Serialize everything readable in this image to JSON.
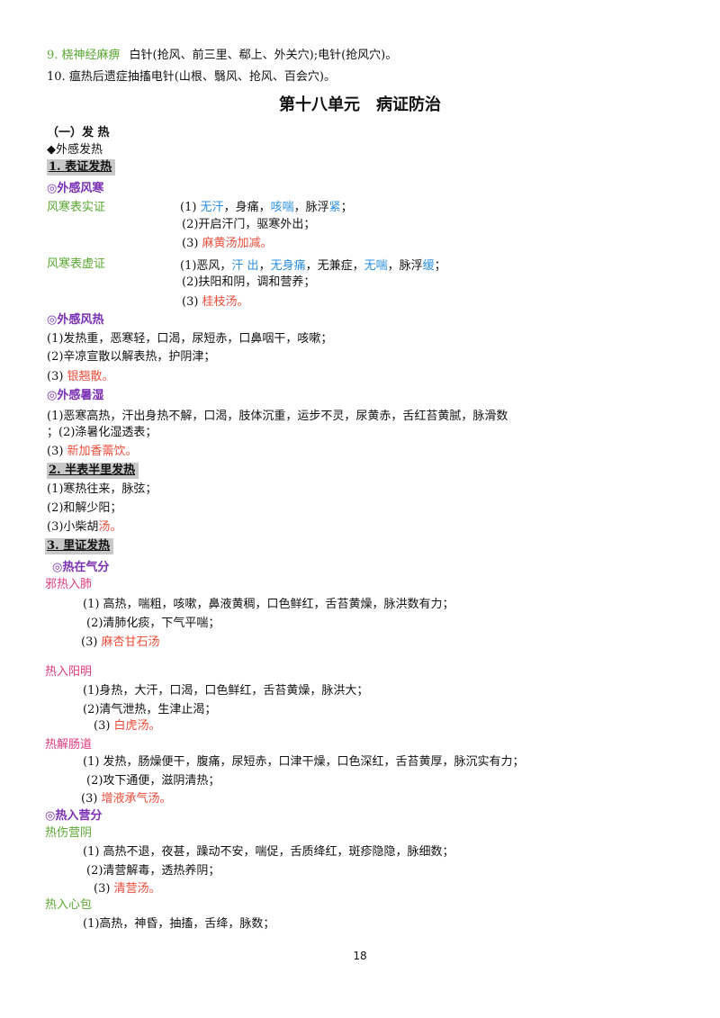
{
  "lines": [
    [
      "9. 桡神经麻痹",
      "白针(抢风、前三里、郗上、外关穴);电针(抢风穴)。"
    ],
    [
      "10. 瘟热后遗症抽搐电针(山根、翳风、抢风、百会穴)。"
    ],
    [
      "第十八单元　病证防治"
    ],
    [
      "（一）发 热"
    ],
    [
      "◆外感发热"
    ],
    [
      "1. 表证发热"
    ],
    [
      "◎外感风寒"
    ],
    [
      "风寒表实证"
    ],
    [
      "(1) ",
      "无汗",
      "，身痛，",
      "咳喘",
      "，脉浮",
      "紧",
      "；"
    ],
    [
      "(2)开启汗门，驱寒外出；"
    ],
    [
      "(3) ",
      "麻黄汤加减。"
    ],
    [
      "风寒表虚证"
    ],
    [
      "(1)恶风，",
      "汗 出",
      "，",
      "无身痛",
      "，无兼症，",
      "无喘",
      "，脉浮",
      "缓",
      "；"
    ],
    [
      "(2)扶阳和阴，调和营养；"
    ],
    [
      "(3) ",
      "桂枝汤。"
    ],
    [
      "◎外感风热"
    ],
    [
      "(1)发热重，恶寒轻，口渴，尿短赤，口鼻咽干，咳嗽；"
    ],
    [
      "(2)辛凉宣散以解表热，护阴津；"
    ],
    [
      "(3) ",
      "银翘散。"
    ],
    [
      "◎外感暑湿"
    ],
    [
      "(1)恶寒高热，汗出身热不解，口渴，肢体沉重，运步不灵，尿黄赤，舌红苔黄腻，脉滑数"
    ],
    [
      "；(2)涤暑化湿透表；"
    ],
    [
      "(3) ",
      "新加香薷饮。"
    ],
    [
      "2. 半表半里发热"
    ],
    [
      "(1)寒热往来，脉弦；"
    ],
    [
      "(2)和解少阳；"
    ],
    [
      "(3)小柴胡",
      "汤。"
    ],
    [
      "3. 里证发热"
    ],
    [
      "◎热在气分"
    ],
    [
      "邪热入肺"
    ],
    [
      "(1) 高热，喘粗，咳嗽，鼻液黄稠，口色鲜红，舌苔黄燥，脉洪数有力；"
    ],
    [
      "(2)清肺化痰，下气平喘；"
    ],
    [
      "(3) ",
      "麻杏甘石汤"
    ],
    [
      "热入阳明"
    ],
    [
      "(1)身热，大汗，口渴，口色鲜红，舌苔黄燥，脉洪大；"
    ],
    [
      "(2)清气泄热，生津止渴；"
    ],
    [
      "(3) ",
      "白虎汤。"
    ],
    [
      "热解肠道"
    ],
    [
      "(1) 发热，肠燥便干，腹痛，尿短赤，口津干燥，口色深红，舌苔黄厚，脉沉实有力；"
    ],
    [
      "(2)攻下通便，滋阴清热；"
    ],
    [
      "(3) ",
      "增液承气汤。"
    ],
    [
      "◎热入营分"
    ],
    [
      "热伤营阴"
    ],
    [
      "(1) 高热不退，夜甚，躁动不安，喘促，舌质绛红，斑疹隐隐，脉细数；"
    ],
    [
      "(2)清营解毒，透热养阴；"
    ],
    [
      "(3) ",
      "清营汤。"
    ],
    [
      "热入心包"
    ],
    [
      "(1)高热，神昏，抽搐，舌绛，脉数；"
    ],
    [
      "18"
    ]
  ]
}
